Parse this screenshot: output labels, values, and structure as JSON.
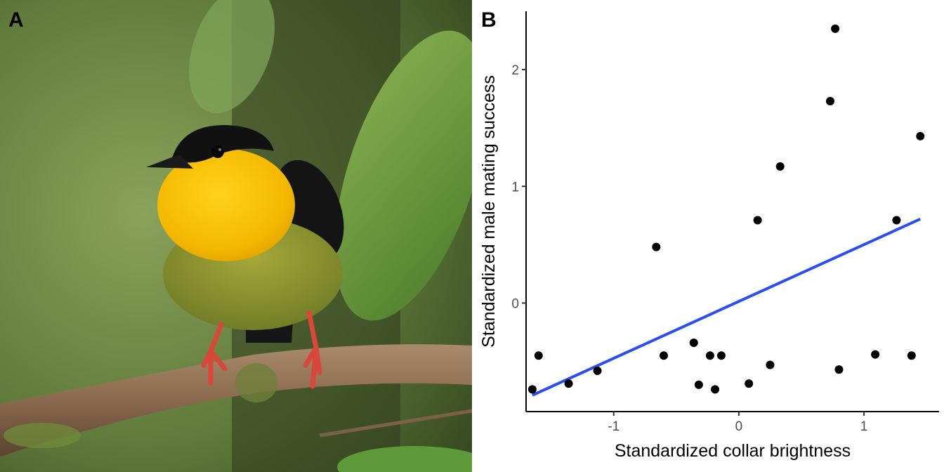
{
  "panels": {
    "a_label": "A",
    "b_label": "B"
  },
  "photo": {
    "subject": "golden-collared manakin perched on branch",
    "colors": {
      "collar": "#f4c200",
      "cap": "#111111",
      "belly": "#8a9430",
      "legs": "#d8473a",
      "background": "#5f7a3a"
    }
  },
  "chart_data": {
    "type": "scatter",
    "title": "",
    "xlabel": "Standardized collar brightness",
    "ylabel": "Standardized male mating success",
    "xlim": [
      -1.7,
      1.6
    ],
    "ylim": [
      -0.93,
      2.5
    ],
    "x_ticks": [
      -1,
      0,
      1
    ],
    "x_tick_labels": [
      "-1",
      "0",
      "1"
    ],
    "y_ticks": [
      0,
      1,
      2
    ],
    "y_tick_labels": [
      "0",
      "1",
      "2"
    ],
    "grid": false,
    "points": [
      {
        "x": -1.65,
        "y": -0.74
      },
      {
        "x": -1.6,
        "y": -0.45
      },
      {
        "x": -1.36,
        "y": -0.69
      },
      {
        "x": -1.13,
        "y": -0.58
      },
      {
        "x": -0.66,
        "y": 0.48
      },
      {
        "x": -0.6,
        "y": -0.45
      },
      {
        "x": -0.36,
        "y": -0.34
      },
      {
        "x": -0.32,
        "y": -0.7
      },
      {
        "x": -0.23,
        "y": -0.45
      },
      {
        "x": -0.19,
        "y": -0.74
      },
      {
        "x": -0.14,
        "y": -0.45
      },
      {
        "x": 0.08,
        "y": -0.69
      },
      {
        "x": 0.15,
        "y": 0.71
      },
      {
        "x": 0.25,
        "y": -0.53
      },
      {
        "x": 0.33,
        "y": 1.17
      },
      {
        "x": 0.73,
        "y": 1.73
      },
      {
        "x": 0.77,
        "y": 2.35
      },
      {
        "x": 0.8,
        "y": -0.57
      },
      {
        "x": 1.09,
        "y": -0.44
      },
      {
        "x": 1.26,
        "y": 0.71
      },
      {
        "x": 1.38,
        "y": -0.45
      },
      {
        "x": 1.45,
        "y": 1.43
      }
    ],
    "fit_line": {
      "x": [
        -1.65,
        1.45
      ],
      "y": [
        -0.79,
        0.72
      ],
      "color": "#2b4ef0"
    },
    "point_color": "#000000"
  }
}
